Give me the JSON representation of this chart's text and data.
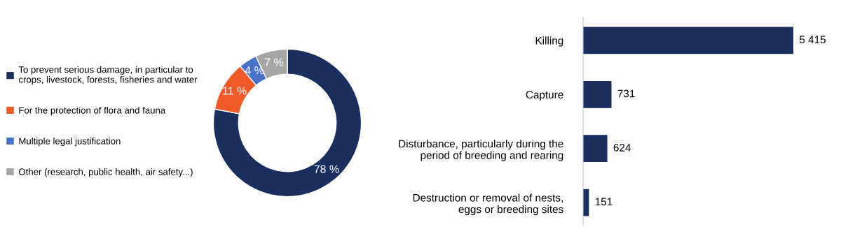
{
  "chart_data": [
    {
      "type": "donut",
      "categories": [
        "To prevent serious damage, in particular to\ncrops, livestock, forests, fisheries and water",
        "For the protection of flora and fauna",
        "Multiple legal justification",
        "Other (research, public health, air safety...)"
      ],
      "values": [
        78,
        11,
        4,
        7
      ],
      "colors": [
        "#1b2f5e",
        "#f05a28",
        "#4a72c4",
        "#a6a6a6"
      ],
      "value_labels": [
        "78 %",
        "11 %",
        "4 %",
        "7 %"
      ],
      "legend": "left"
    },
    {
      "type": "bar",
      "orientation": "horizontal",
      "categories": [
        "Killing",
        "Capture",
        "Disturbance, particularly during the\nperiod of breeding and rearing",
        "Destruction or removal of nests,\neggs or breeding sites"
      ],
      "values": [
        5415,
        731,
        624,
        151
      ],
      "color": "#1b2f5e",
      "value_labels": [
        "5 415",
        "731",
        "624",
        "151"
      ],
      "tick_labels": "y"
    }
  ]
}
